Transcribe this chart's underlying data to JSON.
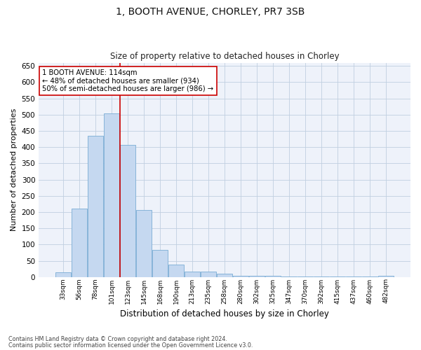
{
  "title1": "1, BOOTH AVENUE, CHORLEY, PR7 3SB",
  "title2": "Size of property relative to detached houses in Chorley",
  "xlabel": "Distribution of detached houses by size in Chorley",
  "ylabel": "Number of detached properties",
  "categories": [
    "33sqm",
    "56sqm",
    "78sqm",
    "101sqm",
    "123sqm",
    "145sqm",
    "168sqm",
    "190sqm",
    "213sqm",
    "235sqm",
    "258sqm",
    "280sqm",
    "302sqm",
    "325sqm",
    "347sqm",
    "370sqm",
    "392sqm",
    "415sqm",
    "437sqm",
    "460sqm",
    "482sqm"
  ],
  "values": [
    15,
    212,
    435,
    505,
    407,
    207,
    84,
    38,
    18,
    18,
    10,
    5,
    5,
    4,
    3,
    3,
    3,
    3,
    1,
    1,
    4
  ],
  "bar_color": "#c5d8f0",
  "bar_edge_color": "#7aadd4",
  "vline_x": 3.5,
  "vline_color": "#cc0000",
  "annotation_text": "1 BOOTH AVENUE: 114sqm\n← 48% of detached houses are smaller (934)\n50% of semi-detached houses are larger (986) →",
  "annotation_box_color": "#ffffff",
  "annotation_box_edge": "#cc0000",
  "ylim": [
    0,
    660
  ],
  "yticks": [
    0,
    50,
    100,
    150,
    200,
    250,
    300,
    350,
    400,
    450,
    500,
    550,
    600,
    650
  ],
  "footer1": "Contains HM Land Registry data © Crown copyright and database right 2024.",
  "footer2": "Contains public sector information licensed under the Open Government Licence v3.0.",
  "bg_color": "#ffffff",
  "plot_bg_color": "#eef2fa"
}
